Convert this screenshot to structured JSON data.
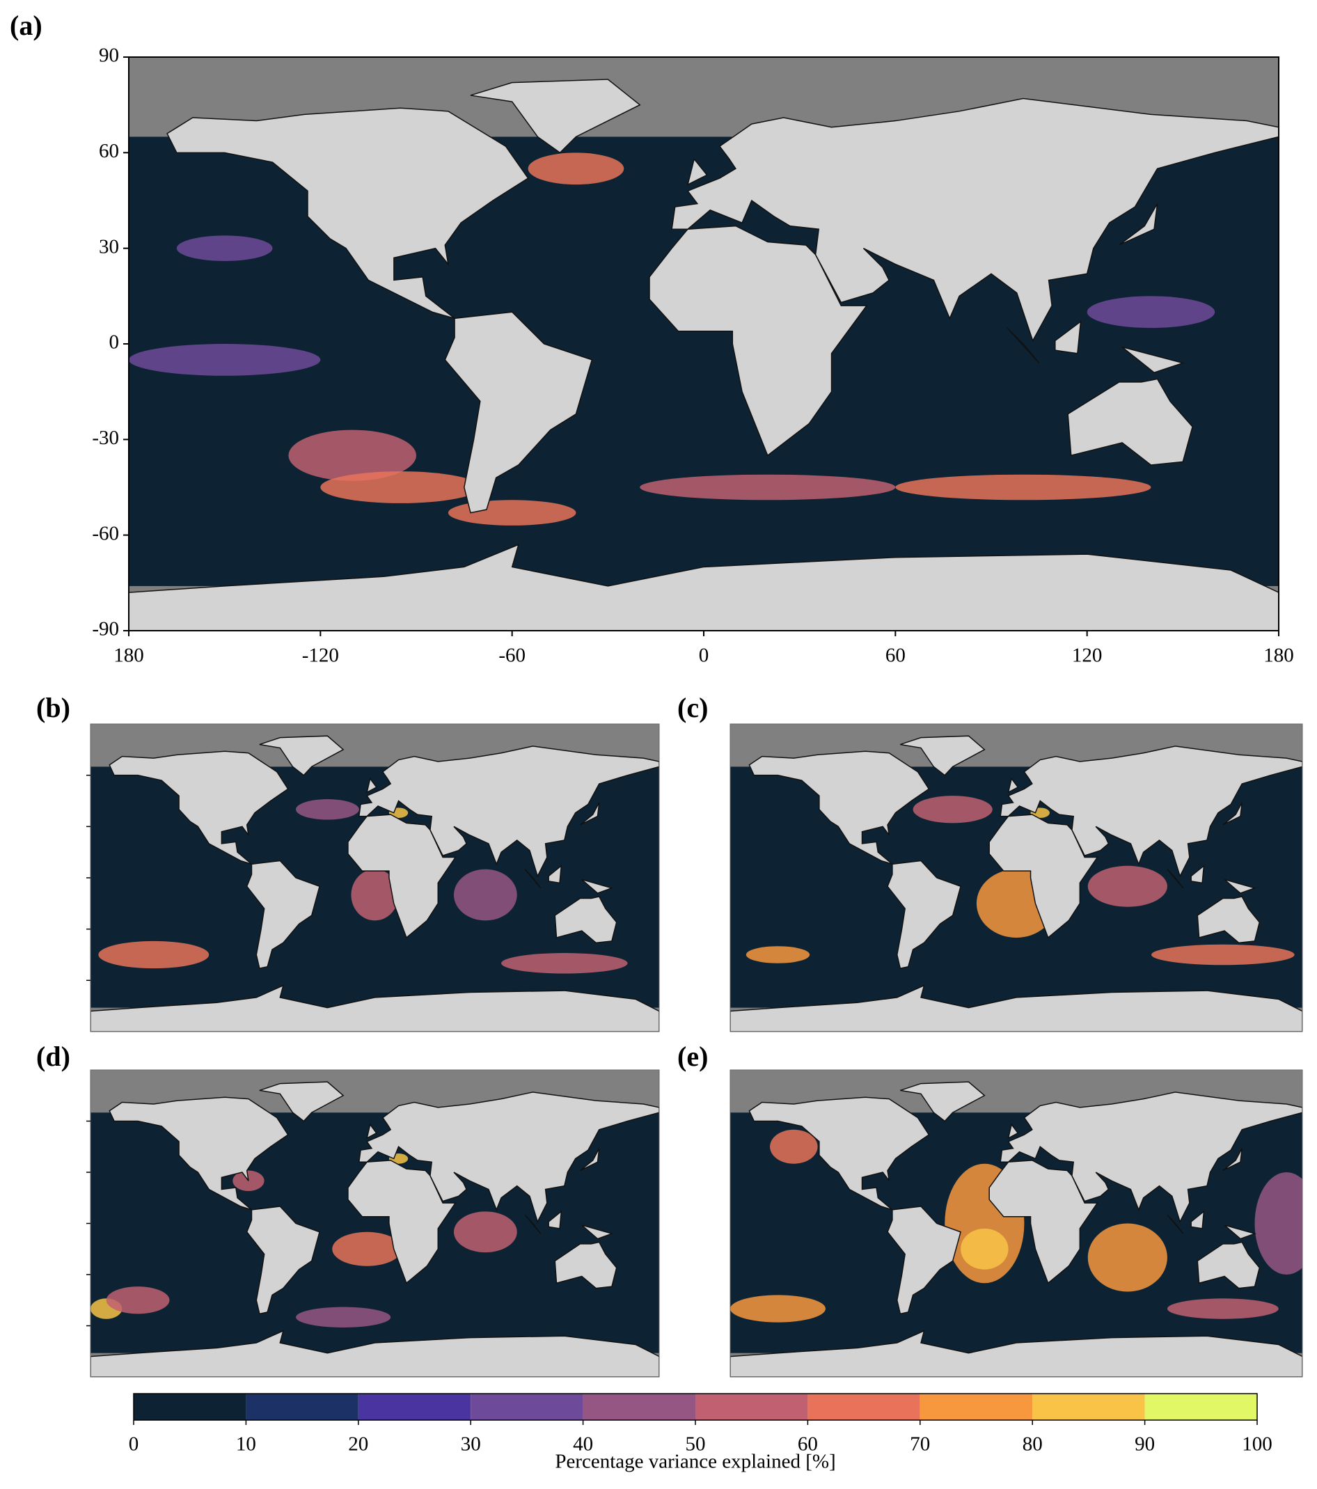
{
  "panels": [
    {
      "label": "(a)"
    },
    {
      "label": "(b)"
    },
    {
      "label": "(c)"
    },
    {
      "label": "(d)"
    },
    {
      "label": "(e)"
    }
  ],
  "axes": {
    "xlim": [
      -180,
      180
    ],
    "ylim": [
      -90,
      90
    ],
    "xticks": [
      {
        "value": -180,
        "label": "180"
      },
      -120,
      -60,
      0,
      60,
      120,
      180
    ],
    "yticks": [
      90,
      60,
      30,
      0,
      -30,
      -60,
      -90
    ]
  },
  "colorbar": {
    "label": "Percentage variance explained [%]",
    "ticks": [
      0,
      10,
      20,
      30,
      40,
      50,
      60,
      70,
      80,
      90,
      100
    ],
    "colors": [
      "#0d2333",
      "#1c3166",
      "#4a34a0",
      "#6e4a9a",
      "#955683",
      "#c06070",
      "#e8735a",
      "#f7983e",
      "#f8c346",
      "#e2f766"
    ]
  }
}
